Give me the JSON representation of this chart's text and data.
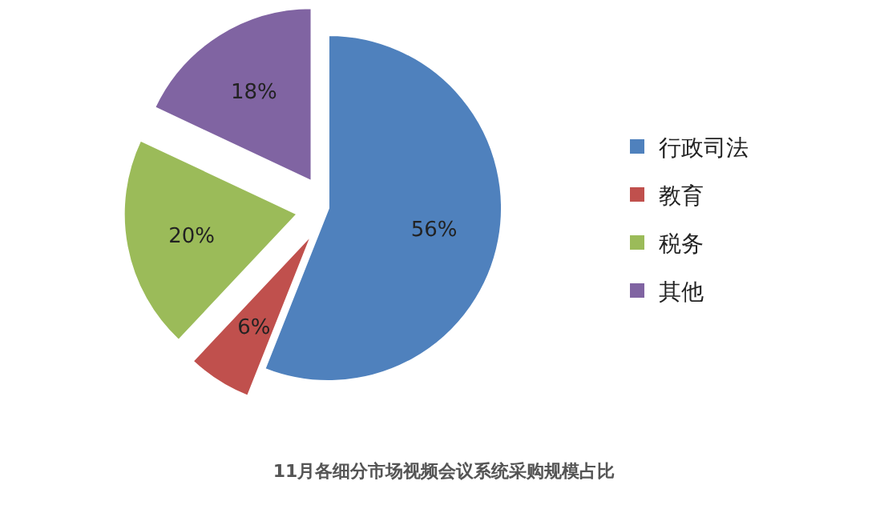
{
  "chart_data": {
    "type": "pie",
    "title": "11月各细分市场视频会议系统采购规模占比",
    "categories": [
      "行政司法",
      "教育",
      "税务",
      "其他"
    ],
    "values": [
      56,
      6,
      20,
      18
    ],
    "value_labels": [
      "56%",
      "6%",
      "20%",
      "18%"
    ],
    "colors": [
      "#4f81bd",
      "#c0504d",
      "#9bbb59",
      "#8064a2"
    ],
    "legend": "right"
  }
}
